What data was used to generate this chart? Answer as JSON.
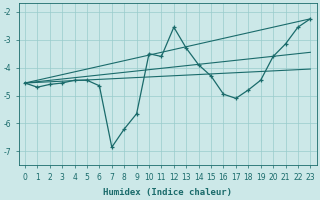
{
  "xlabel": "Humidex (Indice chaleur)",
  "bg_color": "#cce8e8",
  "grid_color": "#99cccc",
  "line_color": "#1a6b6b",
  "xlim": [
    -0.5,
    23.5
  ],
  "ylim": [
    -7.5,
    -1.7
  ],
  "xticks": [
    0,
    1,
    2,
    3,
    4,
    5,
    6,
    7,
    8,
    9,
    10,
    11,
    12,
    13,
    14,
    15,
    16,
    17,
    18,
    19,
    20,
    21,
    22,
    23
  ],
  "yticks": [
    -7,
    -6,
    -5,
    -4,
    -3,
    -2
  ],
  "line1_x": [
    0,
    1,
    2,
    3,
    4,
    5,
    6,
    7,
    8,
    9,
    10,
    11,
    12,
    13,
    14,
    15,
    16,
    17,
    18,
    19,
    20,
    21,
    22,
    23
  ],
  "line1_y": [
    -4.55,
    -4.7,
    -4.6,
    -4.55,
    -4.45,
    -4.45,
    -4.65,
    -6.85,
    -6.2,
    -5.65,
    -3.5,
    -3.6,
    -2.55,
    -3.3,
    -3.9,
    -4.3,
    -4.95,
    -5.1,
    -4.8,
    -4.45,
    -3.6,
    -3.15,
    -2.55,
    -2.25
  ],
  "line3_x": [
    0,
    23
  ],
  "line3_y": [
    -4.55,
    -2.25
  ],
  "line4_x": [
    0,
    23
  ],
  "line4_y": [
    -4.55,
    -4.05
  ],
  "line5_x": [
    0,
    23
  ],
  "line5_y": [
    -4.55,
    -3.45
  ]
}
